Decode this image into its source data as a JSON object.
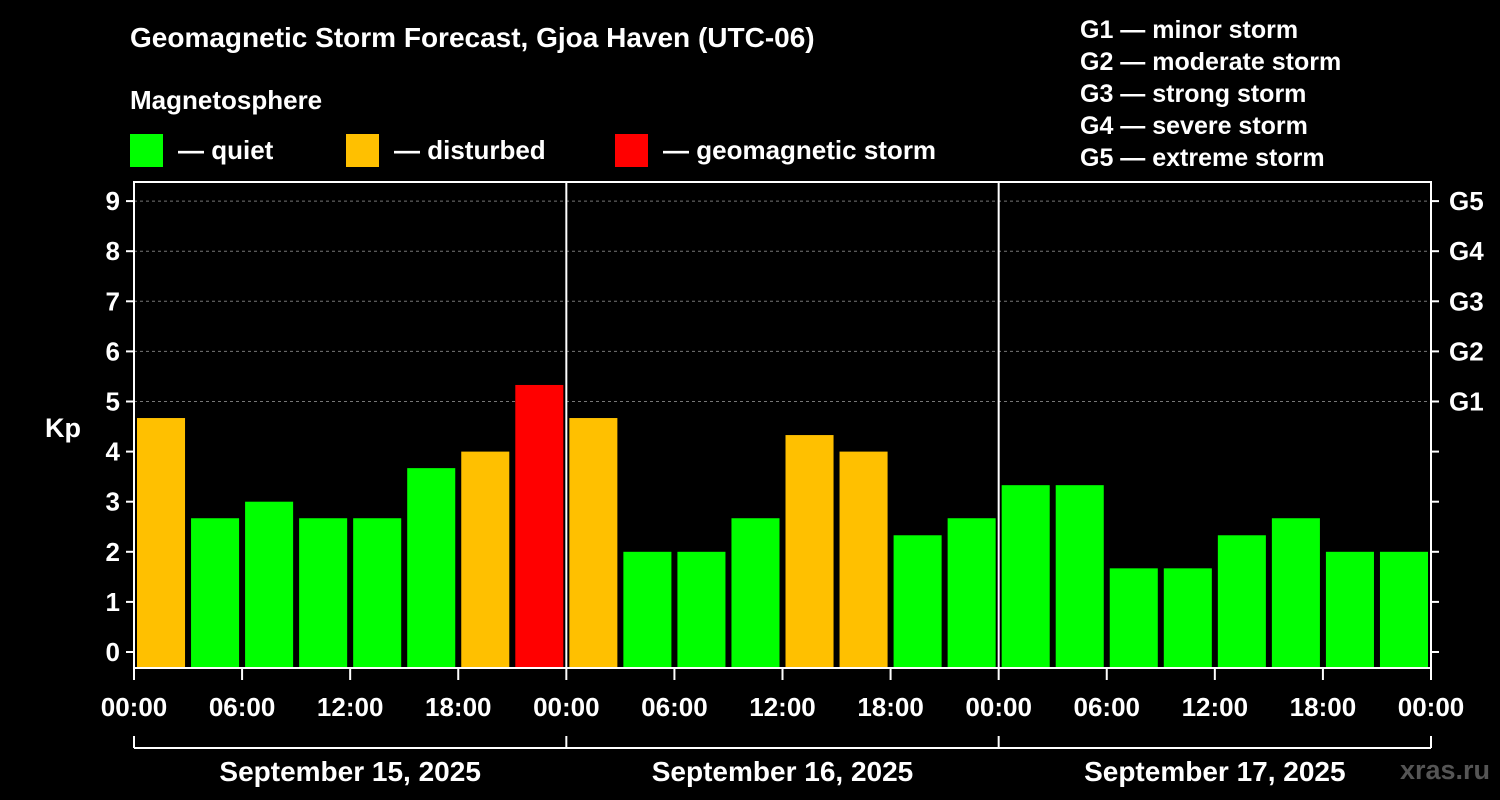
{
  "title": "Geomagnetic Storm Forecast, Gjoa Haven (UTC-06)",
  "subtitle": "Magnetosphere",
  "legend": [
    {
      "color": "#00ff00",
      "label": "— quiet"
    },
    {
      "color": "#ffc000",
      "label": "— disturbed"
    },
    {
      "color": "#ff0000",
      "label": "— geomagnetic storm"
    }
  ],
  "storm_scale": [
    "G1 — minor storm",
    "G2 — moderate storm",
    "G3 — strong storm",
    "G4 — severe storm",
    "G5 — extreme storm"
  ],
  "watermark": "xras.ru",
  "chart_data": {
    "type": "bar",
    "ylabel": "Kp",
    "ylim": [
      0,
      9
    ],
    "y_ticks": [
      "0",
      "1",
      "2",
      "3",
      "4",
      "5",
      "6",
      "7",
      "8",
      "9"
    ],
    "right_ticks": [
      {
        "value": 5,
        "label": "G1"
      },
      {
        "value": 6,
        "label": "G2"
      },
      {
        "value": 7,
        "label": "G3"
      },
      {
        "value": 8,
        "label": "G4"
      },
      {
        "value": 9,
        "label": "G5"
      }
    ],
    "x_tick_labels": [
      "00:00",
      "06:00",
      "12:00",
      "18:00",
      "00:00",
      "06:00",
      "12:00",
      "18:00",
      "00:00",
      "06:00",
      "12:00",
      "18:00",
      "00:00"
    ],
    "days": [
      "September 15, 2025",
      "September 16, 2025",
      "September 17, 2025"
    ],
    "interval_hours": 3,
    "values": [
      4.67,
      2.67,
      3.0,
      2.67,
      2.67,
      3.67,
      4.0,
      5.33,
      4.67,
      2.0,
      2.0,
      2.67,
      4.33,
      4.0,
      2.33,
      2.67,
      3.33,
      3.33,
      1.67,
      1.67,
      2.33,
      2.67,
      2.0,
      2.0
    ],
    "levels": [
      "disturbed",
      "quiet",
      "quiet",
      "quiet",
      "quiet",
      "quiet",
      "disturbed",
      "storm",
      "disturbed",
      "quiet",
      "quiet",
      "quiet",
      "disturbed",
      "disturbed",
      "quiet",
      "quiet",
      "quiet",
      "quiet",
      "quiet",
      "quiet",
      "quiet",
      "quiet",
      "quiet",
      "quiet"
    ],
    "level_colors": {
      "quiet": "#00ff00",
      "disturbed": "#ffc000",
      "storm": "#ff0000"
    },
    "gridlines": [
      5,
      6,
      7,
      8,
      9
    ]
  }
}
